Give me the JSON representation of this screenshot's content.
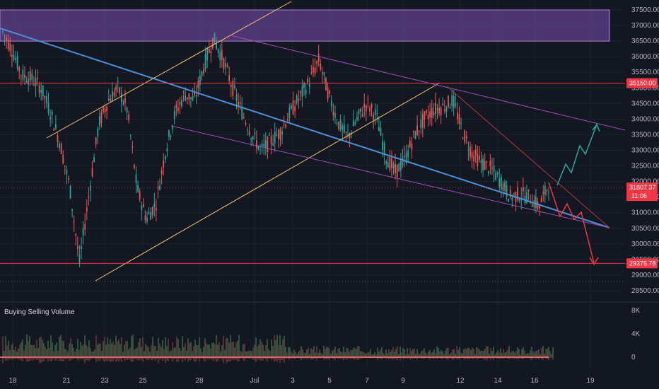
{
  "chart_data": {
    "type": "candlestick",
    "price_axis": {
      "min": 28300,
      "max": 37800,
      "ticks": [
        "37500.00",
        "37000.00",
        "36500.00",
        "36000.00",
        "35500.00",
        "35000.00",
        "34500.00",
        "34000.00",
        "33500.00",
        "33000.00",
        "32500.00",
        "32000.00",
        "31500.00",
        "31000.00",
        "30500.00",
        "30000.00",
        "29500.00",
        "29000.00",
        "28500.00"
      ],
      "tick_values": [
        37500,
        37000,
        36500,
        36000,
        35500,
        35000,
        34500,
        34000,
        33500,
        33000,
        32500,
        32000,
        31500,
        31000,
        30500,
        30000,
        29500,
        29000,
        28500
      ]
    },
    "time_axis": {
      "labels": [
        "18",
        "21",
        "23",
        "25",
        "28",
        "Jul",
        "3",
        "5",
        "7",
        "9",
        "12",
        "14",
        "16",
        "19"
      ]
    },
    "horizontal_levels": [
      {
        "label": "35150.00",
        "value": 35150,
        "color": "#f23645"
      },
      {
        "label": "29375.78",
        "value": 29375.78,
        "color": "#f23645"
      }
    ],
    "last_price": {
      "label": "31807.37",
      "countdown": "11:06",
      "value": 31807.37
    },
    "supply_zone": {
      "from": 36500,
      "to": 37500,
      "color": "#7b4fb0"
    },
    "candles_approx": [
      36800,
      36200,
      35400,
      35300,
      35000,
      34200,
      33200,
      31800,
      29400,
      31600,
      33800,
      34600,
      35000,
      34300,
      31800,
      30800,
      31300,
      33000,
      34200,
      34800,
      34600,
      35700,
      36600,
      35900,
      35000,
      34200,
      33500,
      33000,
      33300,
      33600,
      34200,
      34700,
      35200,
      35900,
      34800,
      33900,
      33400,
      34000,
      34500,
      34100,
      32800,
      32300,
      32700,
      33500,
      34000,
      34300,
      34400,
      34600,
      33600,
      32900,
      32600,
      32400,
      32000,
      31500,
      31600,
      31500,
      31200,
      31900
    ],
    "indicator": {
      "title": "Buying Selling Volume",
      "ticks": [
        "8K",
        "4K",
        "0"
      ],
      "tick_values": [
        8000,
        4000,
        0
      ]
    },
    "colors": {
      "up": "#26a69a",
      "down": "#ef5350",
      "blue_trendline": "#4a90d9",
      "yellow_channel": "#f5c26b",
      "purple_channel": "#9c4fb8",
      "forecast_up": "#26a69a",
      "forecast_down": "#f23645"
    }
  }
}
